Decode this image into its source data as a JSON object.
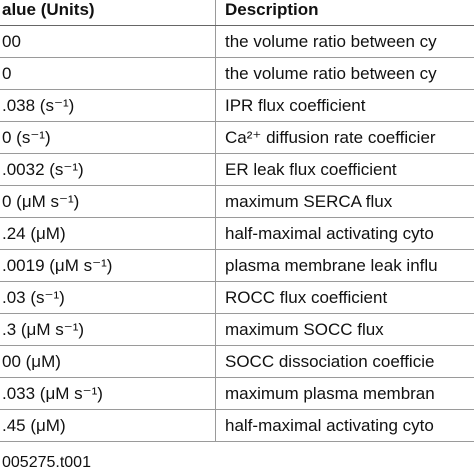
{
  "table": {
    "header": [
      "alue (Units)",
      "Description"
    ],
    "rows": [
      [
        "00",
        "the volume ratio between cy"
      ],
      [
        "0",
        "the volume ratio between cy"
      ],
      [
        ".038 (s⁻¹)",
        "IPR flux coefficient"
      ],
      [
        "0 (s⁻¹)",
        "Ca²⁺ diffusion rate coefficier"
      ],
      [
        ".0032 (s⁻¹)",
        "ER leak flux coefficient"
      ],
      [
        "0 (μM s⁻¹)",
        "maximum SERCA flux"
      ],
      [
        ".24 (μM)",
        "half-maximal activating cyto"
      ],
      [
        ".0019 (μM s⁻¹)",
        "plasma membrane leak influ"
      ],
      [
        ".03 (s⁻¹)",
        "ROCC flux coefficient"
      ],
      [
        ".3 (μM s⁻¹)",
        "maximum SOCC flux"
      ],
      [
        "00 (μM)",
        "SOCC dissociation coefficie"
      ],
      [
        ".033 (μM s⁻¹)",
        "maximum plasma membran"
      ],
      [
        ".45 (μM)",
        "half-maximal activating cyto"
      ]
    ],
    "footer": "005275.t001"
  }
}
